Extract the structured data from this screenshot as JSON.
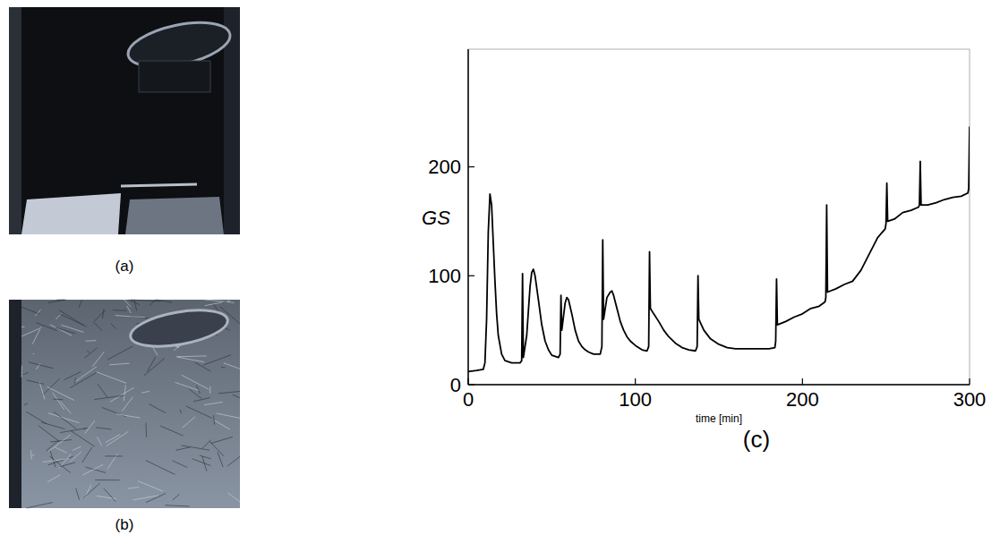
{
  "chart_data": {
    "type": "line",
    "panel_label": "(c)",
    "x_label": "time [min]",
    "y_label": "GS",
    "color": "#000000",
    "xlim": [
      0,
      300
    ],
    "xticks": [
      0,
      100,
      200,
      300
    ],
    "ylim": [
      0,
      308
    ],
    "yticks": [
      0,
      100,
      200
    ],
    "grid": false,
    "x": [
      0,
      5,
      9,
      10,
      11,
      12,
      13,
      14,
      15,
      16,
      17,
      18,
      20,
      22,
      26,
      31,
      32,
      32.5,
      33,
      35,
      37,
      38,
      39,
      40,
      42,
      44,
      46,
      48,
      50,
      54,
      55,
      55.5,
      56,
      58,
      59,
      60,
      62,
      64,
      66,
      68,
      70,
      72,
      75,
      79,
      80,
      80.5,
      81,
      83,
      85,
      86,
      87,
      89,
      91,
      93,
      95,
      97,
      100,
      104,
      107,
      108,
      108.5,
      109,
      111,
      114,
      117,
      120,
      124,
      128,
      132,
      136,
      137,
      137.5,
      138,
      141,
      145,
      150,
      155,
      160,
      170,
      180,
      183.5,
      184,
      184.5,
      185,
      190,
      195,
      200,
      205,
      210,
      213.5,
      214,
      214.5,
      215,
      220,
      225,
      230,
      235,
      240,
      245,
      249.5,
      250,
      250.5,
      251,
      255,
      260,
      265,
      269.5,
      270,
      270.5,
      271,
      275,
      280,
      285,
      290,
      295,
      299,
      299.5,
      300
    ],
    "values": [
      12,
      13,
      14,
      20,
      60,
      140,
      175,
      165,
      130,
      95,
      65,
      45,
      28,
      22,
      20,
      20,
      22,
      102,
      25,
      45,
      90,
      103,
      106,
      100,
      78,
      55,
      40,
      32,
      27,
      25,
      28,
      82,
      50,
      75,
      80,
      78,
      65,
      50,
      40,
      35,
      32,
      30,
      28,
      28,
      35,
      133,
      60,
      80,
      85,
      86,
      82,
      70,
      58,
      50,
      44,
      40,
      36,
      32,
      31,
      35,
      122,
      70,
      65,
      58,
      50,
      44,
      38,
      34,
      32,
      31,
      35,
      100,
      60,
      50,
      42,
      37,
      34,
      33,
      33,
      33,
      34,
      40,
      97,
      55,
      58,
      62,
      65,
      70,
      72,
      76,
      80,
      165,
      85,
      88,
      92,
      95,
      105,
      120,
      135,
      143,
      148,
      185,
      150,
      152,
      158,
      160,
      163,
      165,
      205,
      165,
      165,
      167,
      170,
      172,
      173,
      176,
      180,
      237
    ]
  },
  "photos": [
    {
      "label": "(a)"
    },
    {
      "label": "(b)"
    }
  ]
}
